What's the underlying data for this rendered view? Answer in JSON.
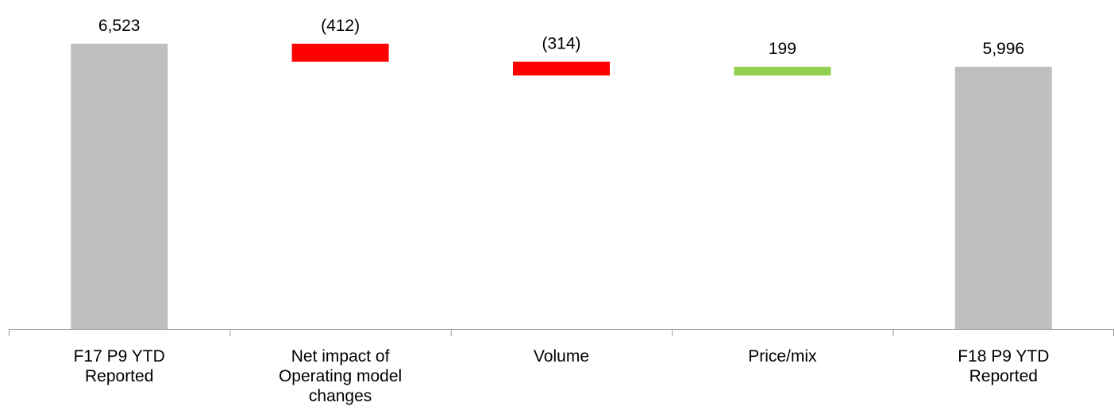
{
  "chart_data": {
    "type": "bar",
    "subtype": "waterfall",
    "categories": [
      "F17 P9 YTD\nReported",
      "Net impact of\nOperating model\nchanges",
      "Volume",
      "Price/mix",
      "F18 P9 YTD\nReported"
    ],
    "values": [
      6523,
      -412,
      -314,
      199,
      5996
    ],
    "data_labels": [
      "6,523",
      "(412)",
      "(314)",
      "199",
      "5,996"
    ],
    "kinds": [
      "total",
      "delta",
      "delta",
      "delta",
      "total"
    ],
    "title": "",
    "xlabel": "",
    "ylabel": "",
    "ylim": [
      0,
      7000
    ],
    "grid": false,
    "legend": "none",
    "colors": {
      "total": "#bfbfbf",
      "decrease": "#ff0000",
      "increase": "#92d050",
      "axis": "#999999"
    }
  }
}
